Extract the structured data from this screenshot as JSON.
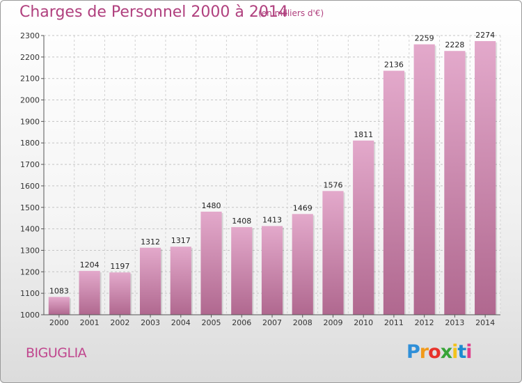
{
  "chart_data": {
    "type": "bar",
    "title": "Charges de Personnel 2000 à 2014",
    "subtitle": "(en milliers d'€)",
    "categories": [
      "2000",
      "2001",
      "2002",
      "2003",
      "2004",
      "2005",
      "2006",
      "2007",
      "2008",
      "2009",
      "2010",
      "2011",
      "2012",
      "2013",
      "2014"
    ],
    "values": [
      1083,
      1204,
      1197,
      1312,
      1317,
      1480,
      1408,
      1413,
      1469,
      1576,
      1811,
      2136,
      2259,
      2228,
      2274
    ],
    "xlabel": "",
    "ylabel": "",
    "ylim": [
      1000,
      2300
    ],
    "yticks": [
      1000,
      1100,
      1200,
      1300,
      1400,
      1500,
      1600,
      1700,
      1800,
      1900,
      2000,
      2100,
      2200,
      2300
    ],
    "grid": true,
    "colors": {
      "bar_top": "#e3a9cb",
      "bar_bottom": "#b0688f",
      "title": "#b0407e"
    }
  },
  "commune": "BIGUGLIA",
  "logo": {
    "p": "P",
    "r": "r",
    "o": "o",
    "x": "x",
    "i1": "i",
    "t": "t",
    "i2": "i"
  }
}
